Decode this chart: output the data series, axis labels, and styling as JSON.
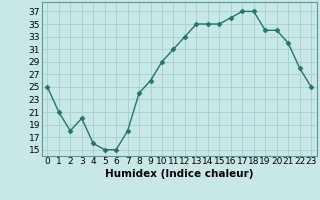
{
  "x": [
    0,
    1,
    2,
    3,
    4,
    5,
    6,
    7,
    8,
    9,
    10,
    11,
    12,
    13,
    14,
    15,
    16,
    17,
    18,
    19,
    20,
    21,
    22,
    23
  ],
  "y": [
    25,
    21,
    18,
    20,
    16,
    15,
    15,
    18,
    24,
    26,
    29,
    31,
    33,
    35,
    35,
    35,
    36,
    37,
    37,
    34,
    34,
    32,
    28,
    25
  ],
  "line_color": "#1a7a6a",
  "marker": "D",
  "marker_size": 2.5,
  "bg_color": "#c8e8e8",
  "grid_color": "#aacece",
  "xlabel": "Humidex (Indice chaleur)",
  "ylabel_ticks": [
    15,
    17,
    19,
    21,
    23,
    25,
    27,
    29,
    31,
    33,
    35,
    37
  ],
  "ylim": [
    14,
    38.5
  ],
  "xlim": [
    -0.5,
    23.5
  ],
  "xlabel_fontsize": 7.5,
  "tick_fontsize": 6.5,
  "linewidth": 1.0
}
